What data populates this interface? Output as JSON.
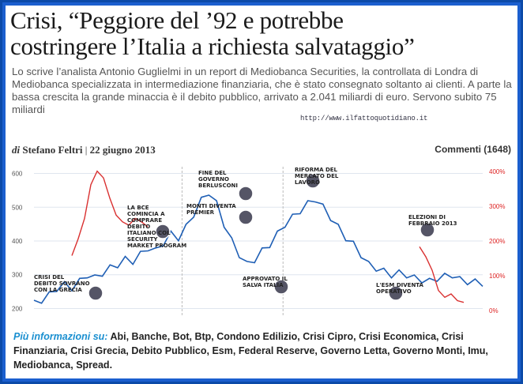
{
  "headline": {
    "line1": "Crisi, “Peggiore del ’92 e potrebbe",
    "line2": "costringere l’Italia a richiesta salvataggio”"
  },
  "summary": "Lo scrive l’analista Antonio Guglielmi in un report di Mediobanca Securities, la controllata di Londra di Mediobanca specializzata in intermediazione finanziaria, che è stato consegnato soltanto ai clienti. A parte la bassa crescita la grande minaccia è il debito pubblico, arrivato a 2.041 miliardi di euro. Servono subito 75 miliardi",
  "watermark": "http://www.ilfattoquotidiano.it",
  "byline": {
    "di": "di",
    "author": "Stefano Feltri",
    "sep": "|",
    "date": "22 giugno 2013",
    "comments": "Commenti (1648)"
  },
  "chart_data": {
    "type": "line",
    "left_axis_ticks": [
      "600",
      "500",
      "400",
      "300",
      "200"
    ],
    "right_axis_ticks": [
      "400%",
      "300%",
      "200%",
      "100%",
      "0%"
    ],
    "ylim_left": [
      180,
      620
    ],
    "series": [
      {
        "color": "#1f5fb5",
        "values": [
          215,
          225,
          240,
          260,
          270,
          262,
          280,
          300,
          290,
          305,
          320,
          330,
          345,
          340,
          360,
          380,
          370,
          395,
          420,
          410,
          440,
          480,
          520,
          545,
          510,
          450,
          400,
          360,
          330,
          345,
          370,
          390,
          420,
          450,
          470,
          490,
          510,
          525,
          500,
          470,
          440,
          410,
          390,
          360,
          330,
          320,
          310,
          300,
          305,
          300,
          290,
          285,
          280,
          290,
          295,
          300,
          285,
          280,
          278,
          275
        ]
      },
      {
        "color": "#d93030",
        "values": [
          310,
          360,
          420,
          520,
          560,
          540,
          480,
          430,
          410,
          400,
          420,
          410,
          395
        ],
        "segment": "early"
      },
      {
        "color": "#d93030",
        "values": [
          430,
          400,
          360,
          300,
          280,
          290,
          270,
          265
        ],
        "segment": "late"
      }
    ],
    "annotations": [
      {
        "text": "CRISI DEL DEBITO SOVRANO CON LA GRECIA"
      },
      {
        "text": "LA BCE COMINCIA A COMPRARE DEBITO ITALIANO COL SECURITY MARKET PROGRAM"
      },
      {
        "text": "FINE DEL GOVERNO BERLUSCONI"
      },
      {
        "text": "MONTI DIVENTA PREMIER"
      },
      {
        "text": "APPROVATO IL SALVA ITALIA"
      },
      {
        "text": "RIFORMA DEL MERCATO DEL LAVORO"
      },
      {
        "text": "L'ESM DIVENTA OPERATIVO"
      },
      {
        "text": "ELEZIONI DI FEBBRAIO 2013"
      }
    ]
  },
  "info": {
    "label": "Più informazioni su:",
    "tags": [
      "Abi",
      "Banche",
      "Bot",
      "Btp",
      "Condono Edilizio",
      "Crisi Cipro",
      "Crisi Economica",
      "Crisi Finanziaria",
      "Crisi Grecia",
      "Debito Pubblico",
      "Esm",
      "Federal Reserve",
      "Governo Letta",
      "Governo Monti",
      "Imu",
      "Mediobanca",
      "Spread."
    ]
  }
}
